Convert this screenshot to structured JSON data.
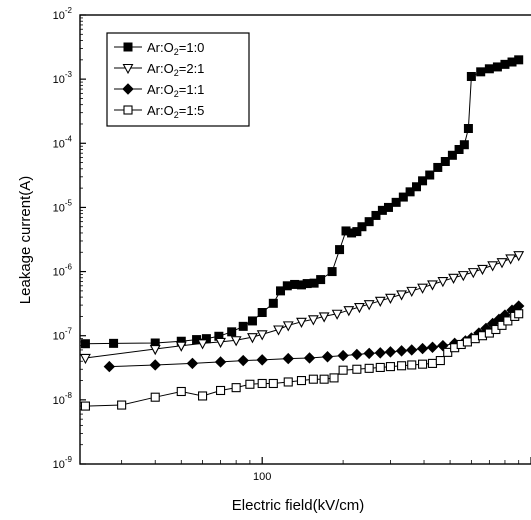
{
  "chart_data": {
    "type": "scatter",
    "xlabel": "Electric field(kV/cm)",
    "ylabel": "Leakage current(A)",
    "x_scale": "log",
    "y_scale": "log",
    "xlim": [
      21,
      1000
    ],
    "ylim": [
      1e-09,
      0.01
    ],
    "x_tick_labels": [
      {
        "value": 100,
        "text": "100"
      }
    ],
    "y_ticks": [
      {
        "value": 0.01,
        "base": "10",
        "exp": "-2"
      },
      {
        "value": 0.001,
        "base": "10",
        "exp": "-3"
      },
      {
        "value": 0.0001,
        "base": "10",
        "exp": "-4"
      },
      {
        "value": 1e-05,
        "base": "10",
        "exp": "-5"
      },
      {
        "value": 1e-06,
        "base": "10",
        "exp": "-6"
      },
      {
        "value": 1e-07,
        "base": "10",
        "exp": "-7"
      },
      {
        "value": 1e-08,
        "base": "10",
        "exp": "-8"
      },
      {
        "value": 1e-09,
        "base": "10",
        "exp": "-9"
      }
    ],
    "legend_position": "top-left",
    "series": [
      {
        "name": "Ar:O2=1:0",
        "legend": {
          "pre": "Ar:O",
          "sub": "2",
          "post": "=1:0"
        },
        "marker": "square-filled",
        "points": [
          [
            22,
            7.5e-08
          ],
          [
            28,
            7.6e-08
          ],
          [
            40,
            7.7e-08
          ],
          [
            50,
            8.2e-08
          ],
          [
            57,
            8.7e-08
          ],
          [
            62,
            9e-08
          ],
          [
            69,
            9.8e-08
          ],
          [
            77,
            1.15e-07
          ],
          [
            85,
            1.4e-07
          ],
          [
            92,
            1.7e-07
          ],
          [
            100,
            2.3e-07
          ],
          [
            110,
            3.2e-07
          ],
          [
            117,
            5e-07
          ],
          [
            124,
            6e-07
          ],
          [
            132,
            6.3e-07
          ],
          [
            140,
            6.2e-07
          ],
          [
            147,
            6.5e-07
          ],
          [
            156,
            6.6e-07
          ],
          [
            165,
            7.5e-07
          ],
          [
            182,
            1e-06
          ],
          [
            194,
            2.2e-06
          ],
          [
            205,
            4.3e-06
          ],
          [
            215,
            4e-06
          ],
          [
            225,
            4.2e-06
          ],
          [
            235,
            5e-06
          ],
          [
            250,
            6e-06
          ],
          [
            265,
            7.5e-06
          ],
          [
            280,
            9e-06
          ],
          [
            295,
            1e-05
          ],
          [
            315,
            1.2e-05
          ],
          [
            335,
            1.45e-05
          ],
          [
            355,
            1.75e-05
          ],
          [
            375,
            2.1e-05
          ],
          [
            395,
            2.6e-05
          ],
          [
            420,
            3.2e-05
          ],
          [
            450,
            4.2e-05
          ],
          [
            480,
            5.2e-05
          ],
          [
            510,
            6.5e-05
          ],
          [
            540,
            8e-05
          ],
          [
            565,
            9.5e-05
          ],
          [
            585,
            0.00017
          ],
          [
            600,
            0.0011
          ],
          [
            650,
            0.0013
          ],
          [
            700,
            0.00145
          ],
          [
            750,
            0.00155
          ],
          [
            800,
            0.0017
          ],
          [
            850,
            0.00185
          ],
          [
            900,
            0.002
          ]
        ]
      },
      {
        "name": "Ar:O2=2:1",
        "legend": {
          "pre": "Ar:O",
          "sub": "2",
          "post": "=2:1"
        },
        "marker": "triangle-down-open",
        "points": [
          [
            22,
            4.5e-08
          ],
          [
            40,
            6.2e-08
          ],
          [
            50,
            7e-08
          ],
          [
            60,
            7.6e-08
          ],
          [
            70,
            8e-08
          ],
          [
            80,
            8.5e-08
          ],
          [
            92,
            9.5e-08
          ],
          [
            100,
            1.05e-07
          ],
          [
            115,
            1.25e-07
          ],
          [
            125,
            1.45e-07
          ],
          [
            140,
            1.65e-07
          ],
          [
            155,
            1.8e-07
          ],
          [
            170,
            2e-07
          ],
          [
            190,
            2.2e-07
          ],
          [
            210,
            2.5e-07
          ],
          [
            230,
            2.8e-07
          ],
          [
            250,
            3.1e-07
          ],
          [
            275,
            3.5e-07
          ],
          [
            300,
            3.9e-07
          ],
          [
            330,
            4.4e-07
          ],
          [
            360,
            5e-07
          ],
          [
            395,
            5.6e-07
          ],
          [
            430,
            6.3e-07
          ],
          [
            470,
            7.1e-07
          ],
          [
            515,
            8e-07
          ],
          [
            560,
            8.8e-07
          ],
          [
            610,
            9.8e-07
          ],
          [
            660,
            1.1e-06
          ],
          [
            720,
            1.25e-06
          ],
          [
            780,
            1.4e-06
          ],
          [
            840,
            1.6e-06
          ],
          [
            900,
            1.8e-06
          ]
        ]
      },
      {
        "name": "Ar:O2=1:1",
        "legend": {
          "pre": "Ar:O",
          "sub": "2",
          "post": "=1:1"
        },
        "marker": "diamond-filled",
        "points": [
          [
            27,
            3.3e-08
          ],
          [
            40,
            3.5e-08
          ],
          [
            55,
            3.7e-08
          ],
          [
            70,
            3.9e-08
          ],
          [
            85,
            4.1e-08
          ],
          [
            100,
            4.2e-08
          ],
          [
            125,
            4.4e-08
          ],
          [
            150,
            4.5e-08
          ],
          [
            175,
            4.7e-08
          ],
          [
            200,
            4.9e-08
          ],
          [
            225,
            5.1e-08
          ],
          [
            250,
            5.3e-08
          ],
          [
            275,
            5.4e-08
          ],
          [
            300,
            5.6e-08
          ],
          [
            330,
            5.8e-08
          ],
          [
            360,
            6e-08
          ],
          [
            395,
            6.3e-08
          ],
          [
            430,
            6.6e-08
          ],
          [
            470,
            7e-08
          ],
          [
            520,
            7.6e-08
          ],
          [
            570,
            8.3e-08
          ],
          [
            600,
            9.2e-08
          ],
          [
            640,
            1.1e-07
          ],
          [
            680,
            1.3e-07
          ],
          [
            720,
            1.55e-07
          ],
          [
            760,
            1.8e-07
          ],
          [
            800,
            2.1e-07
          ],
          [
            850,
            2.5e-07
          ],
          [
            900,
            2.9e-07
          ]
        ]
      },
      {
        "name": "Ar:O2=1:5",
        "legend": {
          "pre": "Ar:O",
          "sub": "2",
          "post": "=1:5"
        },
        "marker": "square-open",
        "points": [
          [
            22,
            8e-09
          ],
          [
            30,
            8.3e-09
          ],
          [
            40,
            1.1e-08
          ],
          [
            50,
            1.35e-08
          ],
          [
            60,
            1.15e-08
          ],
          [
            70,
            1.4e-08
          ],
          [
            80,
            1.55e-08
          ],
          [
            90,
            1.75e-08
          ],
          [
            100,
            1.8e-08
          ],
          [
            110,
            1.8e-08
          ],
          [
            125,
            1.9e-08
          ],
          [
            140,
            2e-08
          ],
          [
            155,
            2.1e-08
          ],
          [
            170,
            2.1e-08
          ],
          [
            185,
            2.2e-08
          ],
          [
            200,
            2.9e-08
          ],
          [
            225,
            3e-08
          ],
          [
            250,
            3.1e-08
          ],
          [
            275,
            3.2e-08
          ],
          [
            300,
            3.3e-08
          ],
          [
            330,
            3.4e-08
          ],
          [
            360,
            3.5e-08
          ],
          [
            395,
            3.6e-08
          ],
          [
            430,
            3.7e-08
          ],
          [
            460,
            4.1e-08
          ],
          [
            490,
            5.5e-08
          ],
          [
            520,
            6.5e-08
          ],
          [
            550,
            7.3e-08
          ],
          [
            580,
            8e-08
          ],
          [
            620,
            9e-08
          ],
          [
            660,
            1e-07
          ],
          [
            700,
            1.1e-07
          ],
          [
            740,
            1.25e-07
          ],
          [
            780,
            1.45e-07
          ],
          [
            820,
            1.7e-07
          ],
          [
            870,
            2e-07
          ],
          [
            900,
            2.2e-07
          ]
        ]
      }
    ]
  }
}
